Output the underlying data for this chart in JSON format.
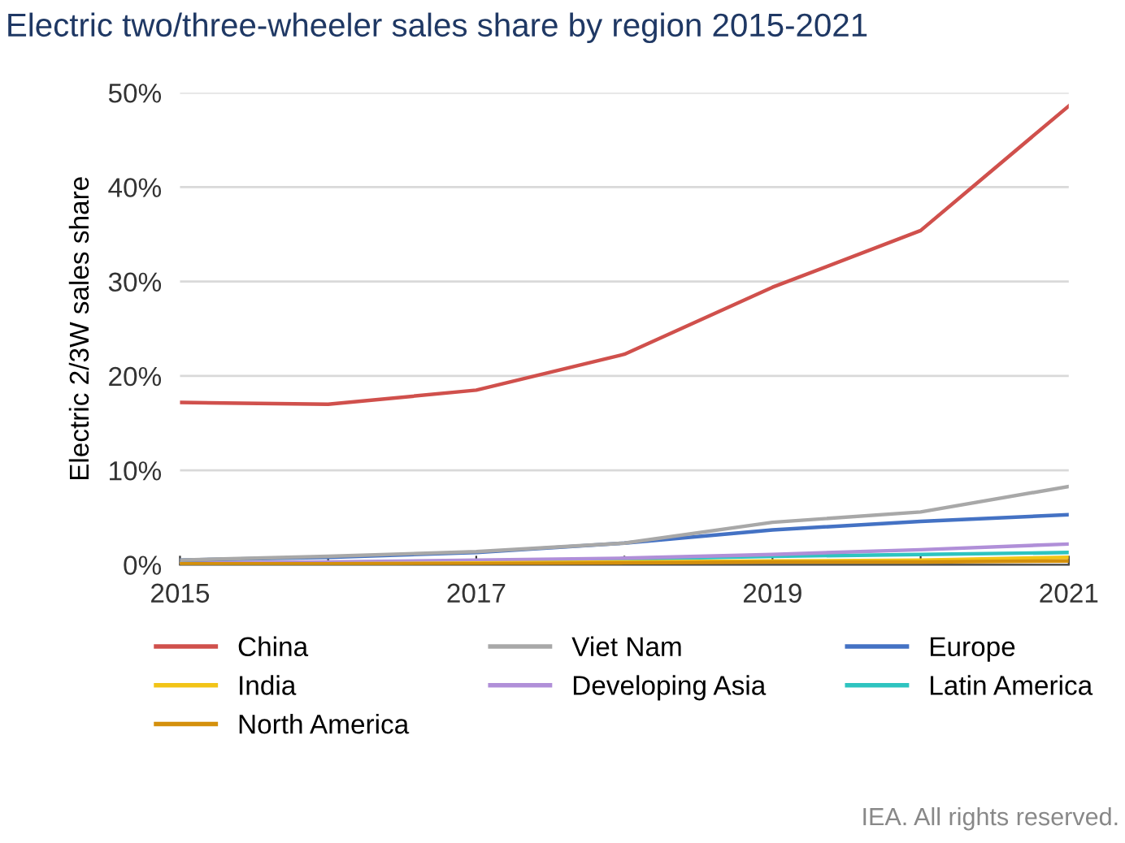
{
  "chart_data": {
    "type": "line",
    "title": "Electric two/three-wheeler sales share by region 2015-2021",
    "ylabel": "Electric 2/3W sales share",
    "x": [
      2015,
      2016,
      2017,
      2018,
      2019,
      2020,
      2021
    ],
    "xlim": [
      2015,
      2021
    ],
    "xticks": [
      2015,
      {
        "value": 2016,
        "label": null
      },
      2017,
      {
        "value": 2018,
        "label": null
      },
      2019,
      {
        "value": 2020,
        "label": null
      },
      2021
    ],
    "ylim": [
      0,
      50
    ],
    "yticks": [
      {
        "value": 0,
        "label": "0%"
      },
      {
        "value": 10,
        "label": "10%"
      },
      {
        "value": 20,
        "label": "20%"
      },
      {
        "value": 30,
        "label": "30%"
      },
      {
        "value": 40,
        "label": "40%"
      },
      {
        "value": 50,
        "label": "50%"
      }
    ],
    "grid": "y",
    "legend": "bottom",
    "marker": "none",
    "line_style": "solid",
    "series": [
      {
        "name": "China",
        "color": "#d0504c",
        "values": [
          17.2,
          17.0,
          18.5,
          22.3,
          29.4,
          35.4,
          48.6
        ]
      },
      {
        "name": "Viet Nam",
        "color": "#a8a8a8",
        "values": [
          0.5,
          0.9,
          1.4,
          2.3,
          4.5,
          5.6,
          8.3
        ]
      },
      {
        "name": "Europe",
        "color": "#4472c4",
        "values": [
          0.5,
          0.8,
          1.3,
          2.3,
          3.7,
          4.6,
          5.3
        ]
      },
      {
        "name": "India",
        "color": "#f2c417",
        "values": [
          0.1,
          0.1,
          0.2,
          0.3,
          0.4,
          0.5,
          0.8
        ]
      },
      {
        "name": "Developing Asia",
        "color": "#b08fd8",
        "values": [
          0.2,
          0.3,
          0.5,
          0.7,
          1.1,
          1.6,
          2.2
        ]
      },
      {
        "name": "Latin America",
        "color": "#2ec4c0",
        "values": [
          null,
          null,
          0.4,
          0.6,
          0.9,
          1.1,
          1.3
        ]
      },
      {
        "name": "North America",
        "color": "#d4900c",
        "values": [
          0.1,
          0.1,
          0.1,
          0.2,
          0.3,
          0.3,
          0.4
        ]
      }
    ],
    "annotations": [
      "IEA. All rights reserved."
    ]
  }
}
